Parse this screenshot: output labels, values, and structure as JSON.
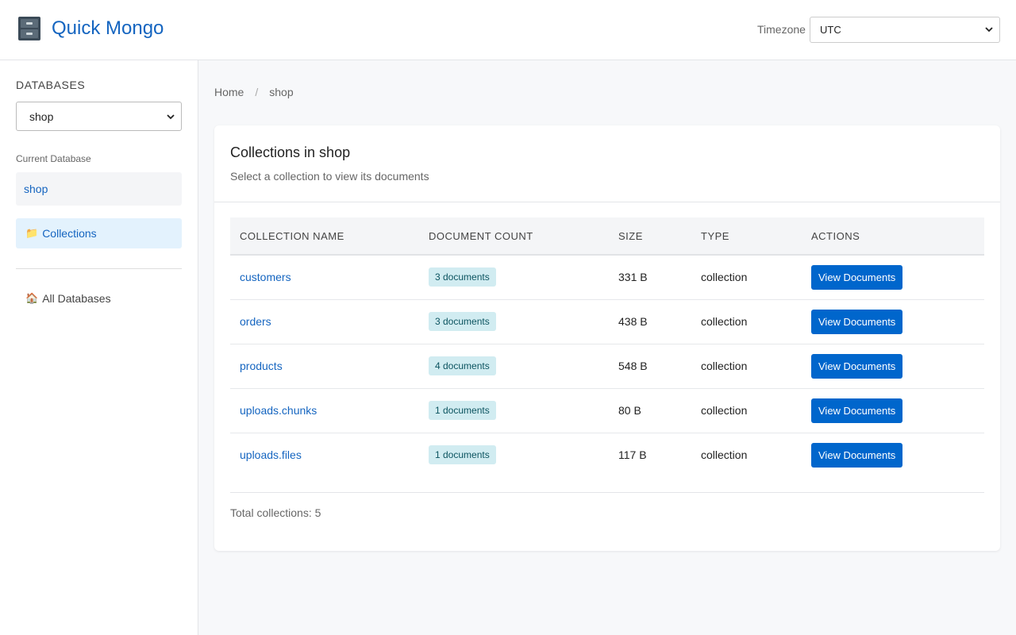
{
  "header": {
    "app_title": "Quick Mongo",
    "timezone_label": "Timezone",
    "timezone_value": "UTC"
  },
  "sidebar": {
    "heading": "DATABASES",
    "selected_db": "shop",
    "current_label": "Current Database",
    "current_db": "shop",
    "collections_label": "Collections",
    "all_databases_label": "All Databases"
  },
  "breadcrumb": {
    "home": "Home",
    "separator": "/",
    "current": "shop"
  },
  "card": {
    "title": "Collections in shop",
    "subtitle": "Select a collection to view its documents",
    "columns": [
      "COLLECTION NAME",
      "DOCUMENT COUNT",
      "SIZE",
      "TYPE",
      "ACTIONS"
    ],
    "rows": [
      {
        "name": "customers",
        "count": "3 documents",
        "size": "331 B",
        "type": "collection",
        "action": "View Documents"
      },
      {
        "name": "orders",
        "count": "3 documents",
        "size": "438 B",
        "type": "collection",
        "action": "View Documents"
      },
      {
        "name": "products",
        "count": "4 documents",
        "size": "548 B",
        "type": "collection",
        "action": "View Documents"
      },
      {
        "name": "uploads.chunks",
        "count": "1 documents",
        "size": "80 B",
        "type": "collection",
        "action": "View Documents"
      },
      {
        "name": "uploads.files",
        "count": "1 documents",
        "size": "117 B",
        "type": "collection",
        "action": "View Documents"
      }
    ],
    "total": "Total collections: 5"
  },
  "colors": {
    "accent": "#1565c0",
    "button": "#0066cc",
    "badge_bg": "#d1ecf1"
  }
}
